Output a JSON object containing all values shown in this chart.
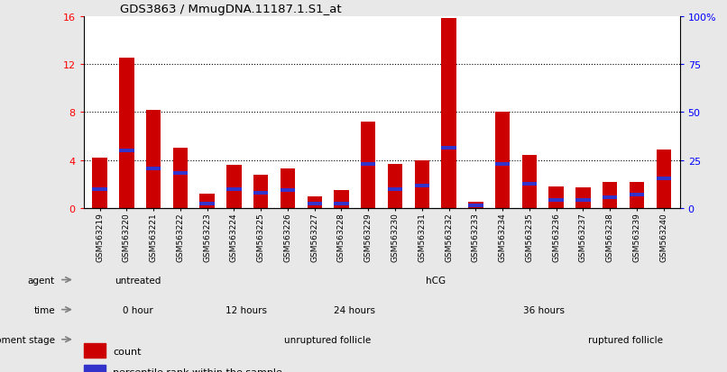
{
  "title": "GDS3863 / MmugDNA.11187.1.S1_at",
  "samples": [
    "GSM563219",
    "GSM563220",
    "GSM563221",
    "GSM563222",
    "GSM563223",
    "GSM563224",
    "GSM563225",
    "GSM563226",
    "GSM563227",
    "GSM563228",
    "GSM563229",
    "GSM563230",
    "GSM563231",
    "GSM563232",
    "GSM563233",
    "GSM563234",
    "GSM563235",
    "GSM563236",
    "GSM563237",
    "GSM563238",
    "GSM563239",
    "GSM563240"
  ],
  "counts": [
    4.2,
    12.5,
    8.2,
    5.0,
    1.2,
    3.6,
    2.8,
    3.3,
    1.0,
    1.5,
    7.2,
    3.7,
    4.0,
    15.8,
    0.5,
    8.0,
    4.4,
    1.8,
    1.7,
    2.2,
    2.2,
    4.9
  ],
  "percentile_marks": [
    1.6,
    4.8,
    3.3,
    2.9,
    0.4,
    1.6,
    1.3,
    1.5,
    0.35,
    0.35,
    3.7,
    1.6,
    1.9,
    5.0,
    0.2,
    3.7,
    2.0,
    0.7,
    0.7,
    0.9,
    1.1,
    2.5
  ],
  "ylim": [
    0,
    16
  ],
  "yticks_left": [
    0,
    4,
    8,
    12,
    16
  ],
  "yticks_right": [
    0,
    25,
    50,
    75,
    100
  ],
  "bar_color": "#cc0000",
  "percentile_color": "#3333cc",
  "background_color": "#e8e8e8",
  "chart_bg": "#ffffff",
  "agent_groups": [
    {
      "label": "untreated",
      "start": 0,
      "end": 4,
      "color": "#88dd88"
    },
    {
      "label": "hCG",
      "start": 4,
      "end": 22,
      "color": "#55bb55"
    }
  ],
  "time_groups": [
    {
      "label": "0 hour",
      "start": 0,
      "end": 4,
      "color": "#ccccff"
    },
    {
      "label": "12 hours",
      "start": 4,
      "end": 8,
      "color": "#aaaaee"
    },
    {
      "label": "24 hours",
      "start": 8,
      "end": 12,
      "color": "#9999dd"
    },
    {
      "label": "36 hours",
      "start": 12,
      "end": 22,
      "color": "#7777cc"
    }
  ],
  "dev_groups": [
    {
      "label": "unruptured follicle",
      "start": 0,
      "end": 18,
      "color": "#ffcccc"
    },
    {
      "label": "ruptured follicle",
      "start": 18,
      "end": 22,
      "color": "#dd5555"
    }
  ],
  "grid_lines": [
    4,
    8,
    12
  ],
  "n_samples": 22
}
